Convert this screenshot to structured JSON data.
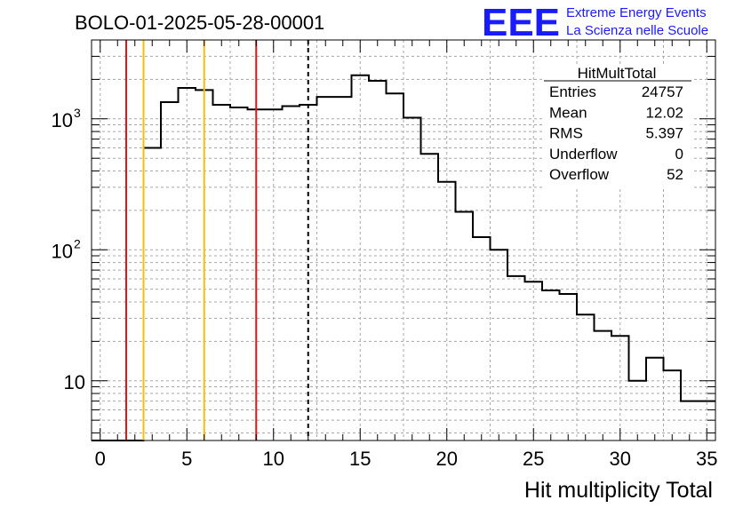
{
  "title": "BOLO-01-2025-05-28-00001",
  "logo": {
    "text": "EEE",
    "line1": "Extreme Energy Events",
    "line2": "La Scienza nelle Scuole",
    "color": "#1a1aff"
  },
  "stats": {
    "name": "HitMultTotal",
    "rows": [
      {
        "label": "Entries",
        "value": "24757"
      },
      {
        "label": "Mean",
        "value": "12.02"
      },
      {
        "label": "RMS",
        "value": "5.397"
      },
      {
        "label": "Underflow",
        "value": "0"
      },
      {
        "label": "Overflow",
        "value": "52"
      }
    ]
  },
  "chart_data": {
    "type": "histogram",
    "xlabel": "Hit multiplicity Total",
    "ylabel": "",
    "xlim": [
      -0.5,
      35.5
    ],
    "ylim": [
      3.5,
      4000
    ],
    "yscale": "log",
    "grid": true,
    "x_ticks": [
      "0",
      "5",
      "10",
      "15",
      "20",
      "25",
      "30",
      "35"
    ],
    "y_ticks": [
      {
        "value": 10,
        "base": "10",
        "exp": ""
      },
      {
        "value": 100,
        "base": "10",
        "exp": "2"
      },
      {
        "value": 1000,
        "base": "10",
        "exp": "3"
      }
    ],
    "bin_width": 1,
    "bins": [
      {
        "x": 0,
        "count": 0
      },
      {
        "x": 1,
        "count": 0
      },
      {
        "x": 2,
        "count": 0
      },
      {
        "x": 3,
        "count": 600
      },
      {
        "x": 4,
        "count": 1340
      },
      {
        "x": 5,
        "count": 1720
      },
      {
        "x": 6,
        "count": 1660
      },
      {
        "x": 7,
        "count": 1280
      },
      {
        "x": 8,
        "count": 1220
      },
      {
        "x": 9,
        "count": 1180
      },
      {
        "x": 10,
        "count": 1180
      },
      {
        "x": 11,
        "count": 1250
      },
      {
        "x": 12,
        "count": 1280
      },
      {
        "x": 13,
        "count": 1470
      },
      {
        "x": 14,
        "count": 1470
      },
      {
        "x": 15,
        "count": 2150
      },
      {
        "x": 16,
        "count": 1950
      },
      {
        "x": 17,
        "count": 1560
      },
      {
        "x": 18,
        "count": 1020
      },
      {
        "x": 19,
        "count": 540
      },
      {
        "x": 20,
        "count": 330
      },
      {
        "x": 21,
        "count": 195
      },
      {
        "x": 22,
        "count": 125
      },
      {
        "x": 23,
        "count": 100
      },
      {
        "x": 24,
        "count": 63
      },
      {
        "x": 25,
        "count": 57
      },
      {
        "x": 26,
        "count": 49
      },
      {
        "x": 27,
        "count": 46
      },
      {
        "x": 28,
        "count": 32
      },
      {
        "x": 29,
        "count": 24
      },
      {
        "x": 30,
        "count": 22
      },
      {
        "x": 31,
        "count": 10
      },
      {
        "x": 32,
        "count": 15
      },
      {
        "x": 33,
        "count": 12
      },
      {
        "x": 34,
        "count": 7
      },
      {
        "x": 35,
        "count": 7
      }
    ],
    "vertical_lines": [
      {
        "x": 1.5,
        "color": "#e8121a",
        "style": "solid"
      },
      {
        "x": 2.5,
        "color": "#f5c000",
        "style": "solid"
      },
      {
        "x": 6.0,
        "color": "#f5c000",
        "style": "solid"
      },
      {
        "x": 9.0,
        "color": "#e8121a",
        "style": "solid"
      },
      {
        "x": 12.0,
        "color": "#000000",
        "style": "dashed"
      }
    ]
  }
}
